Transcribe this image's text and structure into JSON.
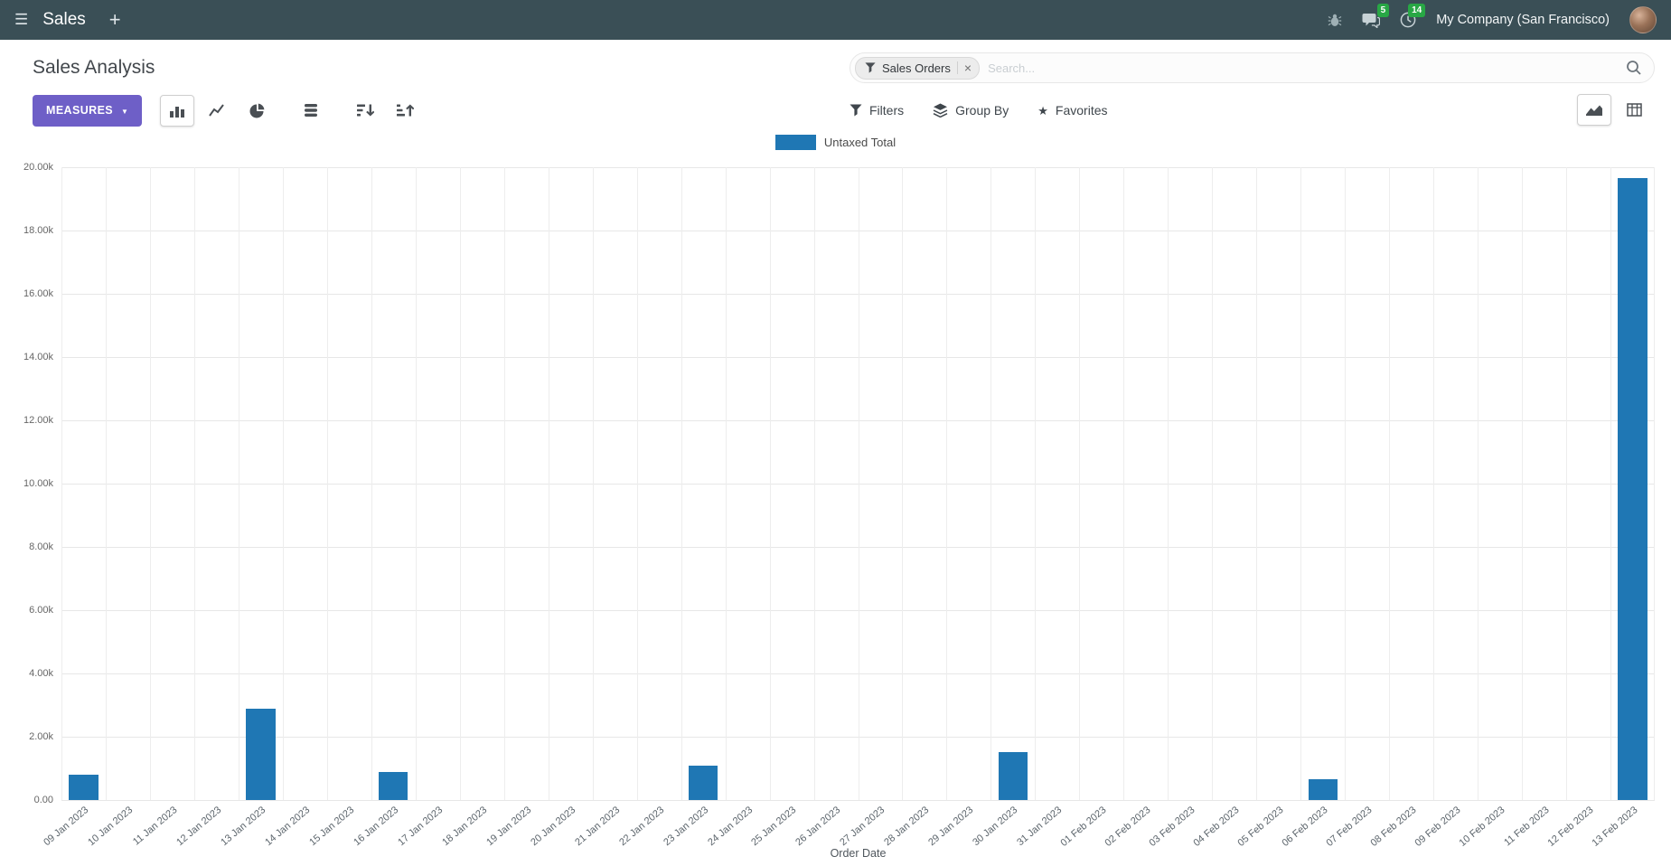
{
  "icons": {
    "hamburger": "☰",
    "plus": "+",
    "caret_down": "▼",
    "star": "★",
    "close": "×"
  },
  "colors": {
    "navbar_bg": "#3a4f56",
    "primary_button": "#6e5fc7",
    "badge_green": "#28a745",
    "bar_blue": "#1f77b4"
  },
  "header": {
    "app_name": "Sales",
    "company": "My Company (San Francisco)",
    "messages_badge": "5",
    "activities_badge": "14"
  },
  "control_panel": {
    "title": "Sales Analysis",
    "search": {
      "facet_label": "Sales Orders",
      "placeholder": "Search..."
    },
    "toolbar": {
      "measures_label": "MEASURES",
      "filters_label": "Filters",
      "group_by_label": "Group By",
      "favorites_label": "Favorites"
    }
  },
  "chart_data": {
    "type": "bar",
    "title": "Sales Analysis",
    "xlabel": "Order Date",
    "ylabel": "",
    "ylim": [
      0,
      20000
    ],
    "grid": true,
    "legend_position": "top-center",
    "yticks": [
      {
        "value": 0,
        "label": "0.00"
      },
      {
        "value": 2000,
        "label": "2.00k"
      },
      {
        "value": 4000,
        "label": "4.00k"
      },
      {
        "value": 6000,
        "label": "6.00k"
      },
      {
        "value": 8000,
        "label": "8.00k"
      },
      {
        "value": 10000,
        "label": "10.00k"
      },
      {
        "value": 12000,
        "label": "12.00k"
      },
      {
        "value": 14000,
        "label": "14.00k"
      },
      {
        "value": 16000,
        "label": "16.00k"
      },
      {
        "value": 18000,
        "label": "18.00k"
      },
      {
        "value": 20000,
        "label": "20.00k"
      }
    ],
    "categories": [
      "09 Jan 2023",
      "10 Jan 2023",
      "11 Jan 2023",
      "12 Jan 2023",
      "13 Jan 2023",
      "14 Jan 2023",
      "15 Jan 2023",
      "16 Jan 2023",
      "17 Jan 2023",
      "18 Jan 2023",
      "19 Jan 2023",
      "20 Jan 2023",
      "21 Jan 2023",
      "22 Jan 2023",
      "23 Jan 2023",
      "24 Jan 2023",
      "25 Jan 2023",
      "26 Jan 2023",
      "27 Jan 2023",
      "28 Jan 2023",
      "29 Jan 2023",
      "30 Jan 2023",
      "31 Jan 2023",
      "01 Feb 2023",
      "02 Feb 2023",
      "03 Feb 2023",
      "04 Feb 2023",
      "05 Feb 2023",
      "06 Feb 2023",
      "07 Feb 2023",
      "08 Feb 2023",
      "09 Feb 2023",
      "10 Feb 2023",
      "11 Feb 2023",
      "12 Feb 2023",
      "13 Feb 2023"
    ],
    "series": [
      {
        "name": "Untaxed Total",
        "color": "#1f77b4",
        "values": [
          800,
          0,
          0,
          0,
          2900,
          0,
          0,
          900,
          0,
          0,
          0,
          0,
          0,
          0,
          1080,
          0,
          0,
          0,
          0,
          0,
          0,
          1520,
          0,
          0,
          0,
          0,
          0,
          0,
          650,
          0,
          0,
          0,
          0,
          0,
          0,
          19650
        ]
      }
    ]
  }
}
